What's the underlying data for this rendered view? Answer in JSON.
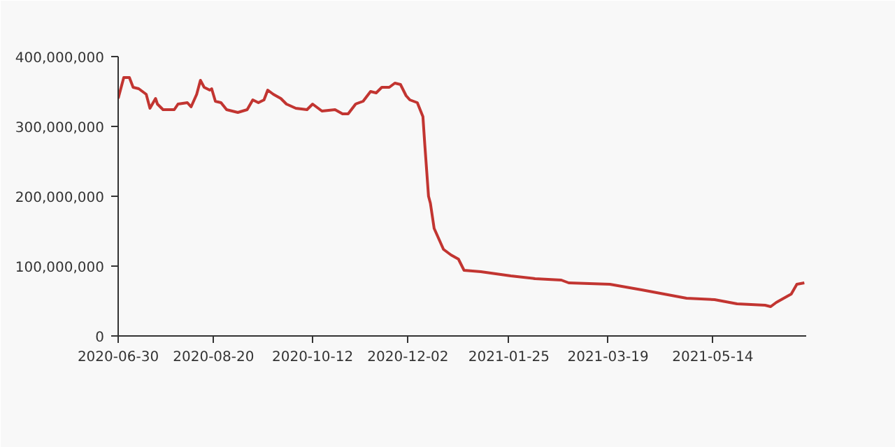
{
  "chart_data": {
    "type": "line",
    "x": [
      "2020-06-30",
      "2020-07-03",
      "2020-07-06",
      "2020-07-08",
      "2020-07-11",
      "2020-07-15",
      "2020-07-17",
      "2020-07-20",
      "2020-07-21",
      "2020-07-24",
      "2020-07-30",
      "2020-08-01",
      "2020-08-06",
      "2020-08-08",
      "2020-08-11",
      "2020-08-13",
      "2020-08-15",
      "2020-08-18",
      "2020-08-19",
      "2020-08-21",
      "2020-08-24",
      "2020-08-27",
      "2020-09-02",
      "2020-09-07",
      "2020-09-10",
      "2020-09-13",
      "2020-09-16",
      "2020-09-18",
      "2020-09-21",
      "2020-09-25",
      "2020-09-28",
      "2020-10-03",
      "2020-10-09",
      "2020-10-12",
      "2020-10-16",
      "2020-10-17",
      "2020-10-24",
      "2020-10-28",
      "2020-10-31",
      "2020-11-04",
      "2020-11-08",
      "2020-11-12",
      "2020-11-15",
      "2020-11-18",
      "2020-11-22",
      "2020-11-25",
      "2020-11-28",
      "2020-12-01",
      "2020-12-03",
      "2020-12-07",
      "2020-12-10",
      "2020-12-11",
      "2020-12-13",
      "2020-12-14",
      "2020-12-16",
      "2020-12-21",
      "2020-12-25",
      "2020-12-29",
      "2021-01-01",
      "2021-01-10",
      "2021-01-26",
      "2021-02-08",
      "2021-02-22",
      "2021-02-26",
      "2021-03-20",
      "2021-04-06",
      "2021-04-30",
      "2021-05-15",
      "2021-05-27",
      "2021-06-11",
      "2021-06-14",
      "2021-06-17",
      "2021-06-25",
      "2021-06-28",
      "2021-07-02"
    ],
    "series": [
      {
        "color": "#c23531",
        "values": [
          340000000,
          370000000,
          370000000,
          356000000,
          354000000,
          346000000,
          326000000,
          340000000,
          332000000,
          324000000,
          324000000,
          332000000,
          334000000,
          328000000,
          346000000,
          366000000,
          356000000,
          352000000,
          354000000,
          336000000,
          334000000,
          324000000,
          320000000,
          324000000,
          338000000,
          334000000,
          338000000,
          352000000,
          346000000,
          340000000,
          332000000,
          326000000,
          324000000,
          332000000,
          324000000,
          322000000,
          324000000,
          318000000,
          318000000,
          332000000,
          336000000,
          350000000,
          348000000,
          356000000,
          356000000,
          362000000,
          360000000,
          344000000,
          338000000,
          334000000,
          314000000,
          274000000,
          200000000,
          190000000,
          154000000,
          124000000,
          116000000,
          110000000,
          94000000,
          92000000,
          86000000,
          82000000,
          80000000,
          76000000,
          74000000,
          66000000,
          54000000,
          52000000,
          46000000,
          44000000,
          42000000,
          48000000,
          60000000,
          74000000,
          76000000
        ]
      }
    ],
    "xlim": [
      "2020-06-30",
      "2021-07-03"
    ],
    "xticks": [
      "2020-06-30",
      "2020-08-20",
      "2020-10-12",
      "2020-12-02",
      "2021-01-25",
      "2021-03-19",
      "2021-05-14"
    ],
    "ylim": [
      0,
      400000000
    ],
    "yticks": [
      0,
      {
        "value": 100000000,
        "label": "100,000,000"
      },
      {
        "value": 200000000,
        "label": "200,000,000"
      },
      {
        "value": 300000000,
        "label": "300,000,000"
      },
      {
        "value": 400000000,
        "label": "400,000,000"
      }
    ],
    "grid": false,
    "line_style": "solid"
  }
}
